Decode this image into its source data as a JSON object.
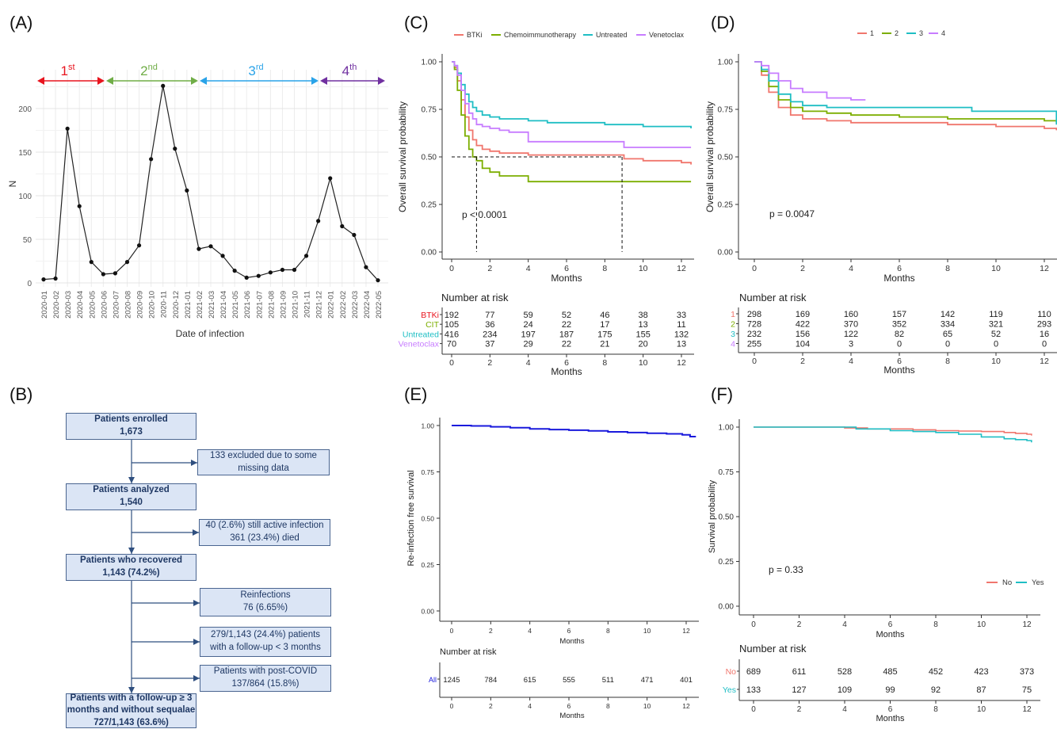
{
  "panels": {
    "A": "(A)",
    "B": "(B)",
    "C": "(C)",
    "D": "(D)",
    "E": "(E)",
    "F": "(F)"
  },
  "colors": {
    "btki": "#f0766d",
    "chemo": "#7cae00",
    "untreated": "#1fbec4",
    "venetoclax": "#c77cff",
    "group1": "#f0766d",
    "group2": "#7cae00",
    "group3": "#1fbec4",
    "group4": "#c77cff",
    "reinfection": "#1a1adc",
    "no": "#f0766d",
    "yes": "#1fbec4",
    "wave1": "#e8141e",
    "wave2": "#70ad47",
    "wave3": "#2aa3e8",
    "wave4": "#7030a0"
  },
  "waves": [
    {
      "base": "1",
      "sup": "st"
    },
    {
      "base": "2",
      "sup": "nd"
    },
    {
      "base": "3",
      "sup": "rd"
    },
    {
      "base": "4",
      "sup": "th"
    }
  ],
  "risk_headers": {
    "C": "Number at risk",
    "D": "Number at risk",
    "E": "Number at risk",
    "F": "Number at risk"
  },
  "flowchart": {
    "enrolled": [
      "Patients enrolled",
      "1,673"
    ],
    "excluded": [
      "133 excluded due to some",
      "missing data"
    ],
    "analyzed": [
      "Patients analyzed",
      "1,540"
    ],
    "active": [
      "40 (2.6%) still active infection",
      "361 (23.4%) died"
    ],
    "recovered": [
      "Patients who recovered",
      "1,143 (74.2%)"
    ],
    "reinfections": [
      "Reinfections",
      "76 (6.65%)"
    ],
    "followup": [
      "279/1,143 (24.4%) patients",
      "with a follow-up < 3 months"
    ],
    "postcovid": [
      "Patients with post-COVID",
      "137/864 (15.8%)"
    ],
    "final": [
      "Patients with a follow-up ≥ 3",
      "months and without sequalae",
      "727/1,143 (63.6%)"
    ]
  },
  "chart_data": [
    {
      "panel": "A",
      "type": "line",
      "xlabel": "Date of infection",
      "ylabel": "N",
      "ylim": [
        0,
        235
      ],
      "yticks": [
        0,
        50,
        100,
        150,
        200
      ],
      "x": [
        "2020-01",
        "2020-02",
        "2020-03",
        "2020-04",
        "2020-05",
        "2020-06",
        "2020-07",
        "2020-08",
        "2020-09",
        "2020-10",
        "2020-11",
        "2020-12",
        "2021-01",
        "2021-02",
        "2021-03",
        "2021-04",
        "2021-05",
        "2021-06",
        "2021-07",
        "2021-08",
        "2021-09",
        "2021-10",
        "2021-11",
        "2021-12",
        "2022-01",
        "2022-02",
        "2022-03",
        "2022-04",
        "2022-05"
      ],
      "values": [
        4,
        5,
        177,
        88,
        24,
        10,
        11,
        24,
        43,
        142,
        226,
        154,
        106,
        39,
        42,
        31,
        14,
        6,
        8,
        12,
        15,
        15,
        31,
        71,
        120,
        65,
        55,
        18,
        3
      ],
      "grid": true
    },
    {
      "panel": "C",
      "type": "line",
      "xlabel": "Months",
      "ylabel": "Overall survival probability",
      "xlim": [
        0,
        12.5
      ],
      "ylim": [
        0,
        1
      ],
      "xticks": [
        0,
        2,
        4,
        6,
        8,
        10,
        12
      ],
      "yticks": [
        "0.00",
        "0.25",
        "0.50",
        "0.75",
        "1.00"
      ],
      "annotation": "p < 0.0001",
      "median_line": {
        "y": 0.5,
        "x_values": [
          1.3,
          8.9
        ]
      },
      "legend_position": "top",
      "series": [
        {
          "name": "BTKi",
          "color": "#f0766d",
          "x": [
            0,
            0.15,
            0.3,
            0.5,
            0.7,
            0.9,
            1.1,
            1.3,
            1.6,
            2,
            2.5,
            3,
            4,
            5,
            6,
            8,
            9,
            10,
            12,
            12.5
          ],
          "y": [
            1,
            0.97,
            0.9,
            0.8,
            0.71,
            0.64,
            0.59,
            0.56,
            0.54,
            0.53,
            0.52,
            0.52,
            0.51,
            0.51,
            0.51,
            0.51,
            0.49,
            0.48,
            0.47,
            0.46
          ]
        },
        {
          "name": "Chemoimmunotherapy",
          "color": "#7cae00",
          "x": [
            0,
            0.15,
            0.3,
            0.5,
            0.7,
            0.9,
            1.1,
            1.3,
            1.6,
            2,
            2.5,
            3,
            4,
            5,
            6,
            8,
            10,
            12,
            12.5
          ],
          "y": [
            1,
            0.96,
            0.85,
            0.72,
            0.61,
            0.54,
            0.5,
            0.48,
            0.44,
            0.42,
            0.4,
            0.4,
            0.37,
            0.37,
            0.37,
            0.37,
            0.37,
            0.37,
            0.37
          ]
        },
        {
          "name": "Untreated",
          "color": "#1fbec4",
          "x": [
            0,
            0.15,
            0.3,
            0.5,
            0.7,
            0.9,
            1.1,
            1.3,
            1.6,
            2,
            2.5,
            3,
            4,
            5,
            6,
            8,
            10,
            12,
            12.5
          ],
          "y": [
            1,
            0.98,
            0.94,
            0.88,
            0.83,
            0.79,
            0.76,
            0.74,
            0.72,
            0.71,
            0.7,
            0.7,
            0.69,
            0.68,
            0.68,
            0.67,
            0.66,
            0.66,
            0.65
          ]
        },
        {
          "name": "Venetoclax",
          "color": "#c77cff",
          "x": [
            0,
            0.15,
            0.3,
            0.5,
            0.7,
            0.9,
            1.1,
            1.3,
            1.6,
            2,
            2.5,
            3,
            4,
            5,
            6,
            8,
            9,
            10,
            12,
            12.5
          ],
          "y": [
            1,
            0.98,
            0.93,
            0.85,
            0.78,
            0.73,
            0.7,
            0.67,
            0.66,
            0.65,
            0.64,
            0.63,
            0.58,
            0.58,
            0.58,
            0.58,
            0.55,
            0.55,
            0.55,
            0.55
          ]
        }
      ],
      "risk_table": {
        "x": [
          0,
          2,
          4,
          6,
          8,
          10,
          12
        ],
        "rows": [
          {
            "label": "BTKi",
            "color": "#e8141e",
            "values": [
              "192",
              "77",
              "59",
              "52",
              "46",
              "38",
              "33"
            ]
          },
          {
            "label": "CIT",
            "color": "#7cae00",
            "values": [
              "105",
              "36",
              "24",
              "22",
              "17",
              "13",
              "11"
            ]
          },
          {
            "label": "Untreated",
            "color": "#1fbec4",
            "values": [
              "416",
              "234",
              "197",
              "187",
              "175",
              "155",
              "132"
            ]
          },
          {
            "label": "Venetoclax",
            "color": "#c77cff",
            "values": [
              "70",
              "37",
              "29",
              "22",
              "21",
              "20",
              "13"
            ]
          }
        ],
        "xlabel": "Months"
      }
    },
    {
      "panel": "D",
      "type": "line",
      "xlabel": "Months",
      "ylabel": "Overall survival probability",
      "xlim": [
        0,
        12.5
      ],
      "ylim": [
        0,
        1
      ],
      "xticks": [
        0,
        2,
        4,
        6,
        8,
        10,
        12
      ],
      "yticks": [
        "0.00",
        "0.25",
        "0.50",
        "0.75",
        "1.00"
      ],
      "annotation": "p = 0.0047",
      "legend_position": "top",
      "series": [
        {
          "name": "1",
          "color": "#f0766d",
          "x": [
            0,
            0.3,
            0.6,
            1,
            1.5,
            2,
            3,
            4,
            6,
            8,
            10,
            12,
            12.5
          ],
          "y": [
            1,
            0.93,
            0.84,
            0.76,
            0.72,
            0.7,
            0.69,
            0.68,
            0.68,
            0.67,
            0.66,
            0.65,
            0.64
          ]
        },
        {
          "name": "2",
          "color": "#7cae00",
          "x": [
            0,
            0.3,
            0.6,
            1,
            1.5,
            2,
            3,
            4,
            6,
            8,
            10,
            12,
            12.5
          ],
          "y": [
            1,
            0.95,
            0.87,
            0.8,
            0.76,
            0.74,
            0.73,
            0.72,
            0.71,
            0.7,
            0.7,
            0.69,
            0.68
          ]
        },
        {
          "name": "3",
          "color": "#1fbec4",
          "x": [
            0,
            0.3,
            0.6,
            1,
            1.5,
            2,
            3,
            4,
            6,
            8,
            9,
            10,
            12,
            12.4,
            12.5
          ],
          "y": [
            1,
            0.96,
            0.9,
            0.83,
            0.79,
            0.77,
            0.76,
            0.76,
            0.76,
            0.76,
            0.74,
            0.74,
            0.74,
            0.74,
            0.67
          ]
        },
        {
          "name": "4",
          "color": "#c77cff",
          "x": [
            0,
            0.3,
            0.6,
            1,
            1.5,
            2,
            3,
            4,
            4.6
          ],
          "y": [
            1,
            0.98,
            0.94,
            0.9,
            0.86,
            0.84,
            0.81,
            0.8,
            0.8
          ]
        }
      ],
      "risk_table": {
        "x": [
          0,
          2,
          4,
          6,
          8,
          10,
          12
        ],
        "rows": [
          {
            "label": "1",
            "color": "#f0766d",
            "values": [
              "298",
              "169",
              "160",
              "157",
              "142",
              "119",
              "110"
            ]
          },
          {
            "label": "2",
            "color": "#7cae00",
            "values": [
              "728",
              "422",
              "370",
              "352",
              "334",
              "321",
              "293"
            ]
          },
          {
            "label": "3",
            "color": "#1fbec4",
            "values": [
              "232",
              "156",
              "122",
              "82",
              "65",
              "52",
              "16"
            ]
          },
          {
            "label": "4",
            "color": "#c77cff",
            "values": [
              "255",
              "104",
              "3",
              "0",
              "0",
              "0",
              "0"
            ]
          }
        ],
        "xlabel": "Months"
      }
    },
    {
      "panel": "E",
      "type": "line",
      "xlabel": "Months",
      "ylabel": "Re-infection free survival",
      "xlim": [
        0,
        12.5
      ],
      "ylim": [
        0,
        1
      ],
      "xticks": [
        0,
        2,
        4,
        6,
        8,
        10,
        12
      ],
      "yticks": [
        "0.00",
        "0.25",
        "0.50",
        "0.75",
        "1.00"
      ],
      "series": [
        {
          "name": "All",
          "color": "#1a1adc",
          "x": [
            0,
            1,
            2,
            3,
            4,
            5,
            6,
            7,
            8,
            9,
            10,
            11,
            11.8,
            12.2,
            12.5
          ],
          "y": [
            1,
            0.998,
            0.993,
            0.988,
            0.982,
            0.978,
            0.975,
            0.971,
            0.966,
            0.962,
            0.958,
            0.955,
            0.95,
            0.94,
            0.94
          ]
        }
      ],
      "risk_table": {
        "x": [
          0,
          2,
          4,
          6,
          8,
          10,
          12
        ],
        "rows": [
          {
            "label": "All",
            "color": "#1a1adc",
            "values": [
              "1245",
              "784",
              "615",
              "555",
              "511",
              "471",
              "401"
            ]
          }
        ],
        "xlabel": "Months"
      }
    },
    {
      "panel": "F",
      "type": "line",
      "xlabel": "Months",
      "ylabel": "Survival probability",
      "xlim": [
        0,
        12.5
      ],
      "ylim": [
        0,
        1
      ],
      "xticks": [
        0,
        2,
        4,
        6,
        8,
        10,
        12
      ],
      "yticks": [
        "0.00",
        "0.25",
        "0.50",
        "0.75",
        "1.00"
      ],
      "annotation": "p = 0.33",
      "legend_position": "bottom-right",
      "series": [
        {
          "name": "No",
          "color": "#f0766d",
          "x": [
            0,
            2,
            4,
            5,
            6,
            7,
            8,
            9,
            10,
            11,
            11.5,
            12,
            12.2
          ],
          "y": [
            1,
            1,
            0.995,
            0.99,
            0.99,
            0.985,
            0.98,
            0.978,
            0.975,
            0.97,
            0.965,
            0.96,
            0.953
          ]
        },
        {
          "name": "Yes",
          "color": "#1fbec4",
          "x": [
            0,
            2,
            3.5,
            4.5,
            5.5,
            6,
            7,
            8,
            9,
            10,
            11,
            11.5,
            12,
            12.2
          ],
          "y": [
            1,
            1,
            1,
            0.99,
            0.99,
            0.98,
            0.975,
            0.97,
            0.96,
            0.945,
            0.935,
            0.93,
            0.925,
            0.915
          ]
        }
      ],
      "risk_table": {
        "x": [
          0,
          2,
          4,
          6,
          8,
          10,
          12
        ],
        "rows": [
          {
            "label": "No",
            "color": "#f0766d",
            "values": [
              "689",
              "611",
              "528",
              "485",
              "452",
              "423",
              "373"
            ]
          },
          {
            "label": "Yes",
            "color": "#1fbec4",
            "values": [
              "133",
              "127",
              "109",
              "99",
              "92",
              "87",
              "75"
            ]
          }
        ],
        "xlabel": "Months"
      }
    }
  ]
}
